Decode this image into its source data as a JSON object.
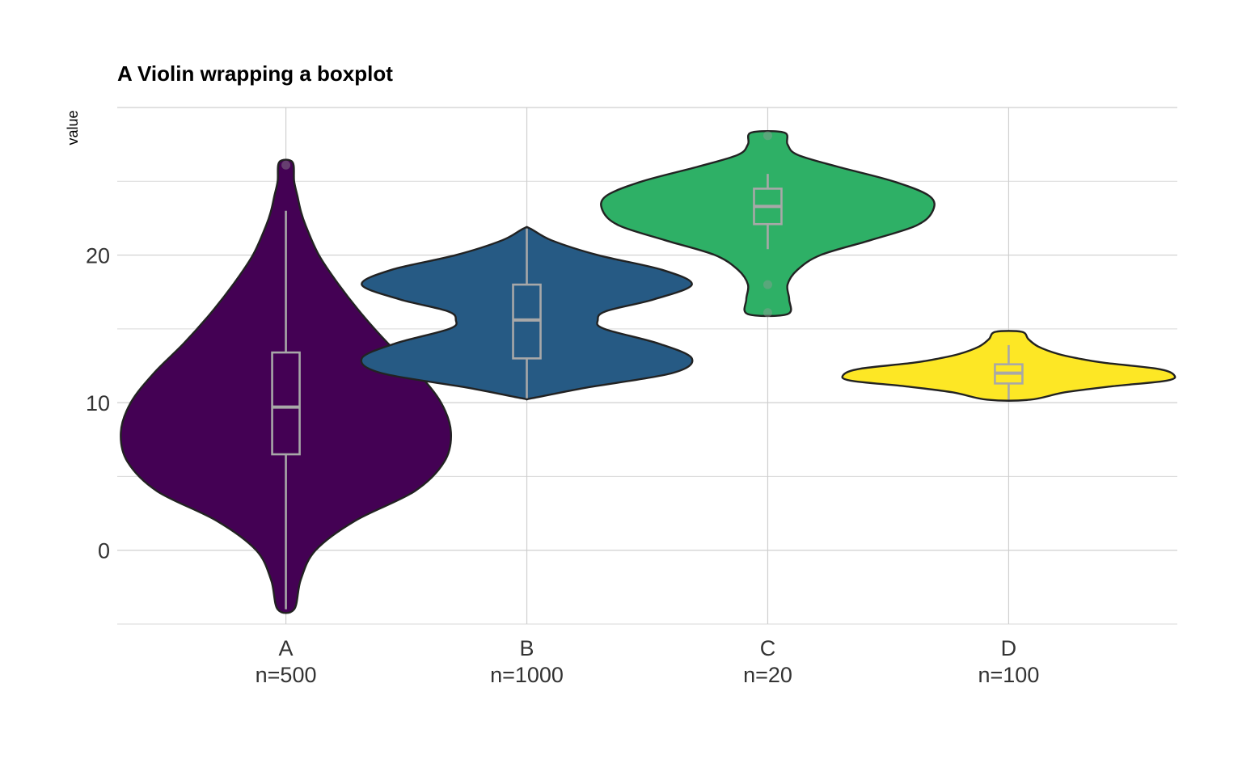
{
  "chart_data": {
    "type": "violin",
    "title": "A Violin wrapping a boxplot",
    "xlabel": "",
    "ylabel": "value",
    "ylim": [
      -5,
      30
    ],
    "yticks": [
      0,
      10,
      20
    ],
    "grid": true,
    "legend": "none",
    "categories": [
      {
        "name": "A",
        "label": "n=500",
        "color": "#440154",
        "min": -4,
        "max": 26.3,
        "box": {
          "q1": 6.5,
          "median": 9.7,
          "q3": 13.4,
          "whisker_low": -4,
          "whisker_high": 23
        },
        "outliers": [
          26.1
        ],
        "density": [
          [
            -4,
            0.05
          ],
          [
            -2,
            0.09
          ],
          [
            0,
            0.18
          ],
          [
            2,
            0.42
          ],
          [
            4,
            0.78
          ],
          [
            6,
            0.96
          ],
          [
            8,
            1.0
          ],
          [
            10,
            0.94
          ],
          [
            12,
            0.8
          ],
          [
            14,
            0.62
          ],
          [
            16,
            0.46
          ],
          [
            18,
            0.32
          ],
          [
            20,
            0.2
          ],
          [
            22,
            0.12
          ],
          [
            23,
            0.09
          ],
          [
            24,
            0.07
          ],
          [
            25,
            0.05
          ],
          [
            26.3,
            0.04
          ]
        ]
      },
      {
        "name": "B",
        "label": "n=1000",
        "color": "#265a84",
        "min": 10.3,
        "max": 21.8,
        "box": {
          "q1": 13.0,
          "median": 15.6,
          "q3": 18.0,
          "whisker_low": 10.3,
          "whisker_high": 21.8
        },
        "outliers": [],
        "density": [
          [
            10.3,
            0.03
          ],
          [
            11,
            0.35
          ],
          [
            12,
            0.88
          ],
          [
            13,
            1.0
          ],
          [
            14,
            0.8
          ],
          [
            15,
            0.47
          ],
          [
            15.6,
            0.43
          ],
          [
            16.2,
            0.48
          ],
          [
            17,
            0.77
          ],
          [
            18,
            1.0
          ],
          [
            19,
            0.82
          ],
          [
            20,
            0.43
          ],
          [
            21,
            0.15
          ],
          [
            21.8,
            0.02
          ]
        ]
      },
      {
        "name": "C",
        "label": "n=20",
        "color": "#2eb066",
        "min": 16,
        "max": 28.3,
        "box": {
          "q1": 22.1,
          "median": 23.3,
          "q3": 24.5,
          "whisker_low": 20.4,
          "whisker_high": 25.5
        },
        "outliers": [
          18.0,
          16.1,
          28.1
        ],
        "density": [
          [
            16,
            0.12
          ],
          [
            17,
            0.13
          ],
          [
            18,
            0.12
          ],
          [
            19,
            0.18
          ],
          [
            20,
            0.32
          ],
          [
            21,
            0.62
          ],
          [
            22,
            0.9
          ],
          [
            23,
            1.0
          ],
          [
            24,
            0.98
          ],
          [
            25,
            0.76
          ],
          [
            26,
            0.42
          ],
          [
            26.8,
            0.18
          ],
          [
            27.5,
            0.12
          ],
          [
            28.3,
            0.1
          ]
        ]
      },
      {
        "name": "D",
        "label": "n=100",
        "color": "#fde725",
        "min": 10.2,
        "max": 14.8,
        "box": {
          "q1": 11.3,
          "median": 12.0,
          "q3": 12.6,
          "whisker_low": 10.2,
          "whisker_high": 13.9
        },
        "outliers": [],
        "density": [
          [
            10.2,
            0.13
          ],
          [
            10.7,
            0.34
          ],
          [
            11.1,
            0.62
          ],
          [
            11.5,
            0.96
          ],
          [
            11.9,
            1.0
          ],
          [
            12.3,
            0.9
          ],
          [
            12.7,
            0.58
          ],
          [
            13.0,
            0.42
          ],
          [
            13.3,
            0.3
          ],
          [
            13.8,
            0.18
          ],
          [
            14.3,
            0.12
          ],
          [
            14.8,
            0.08
          ]
        ]
      }
    ]
  }
}
